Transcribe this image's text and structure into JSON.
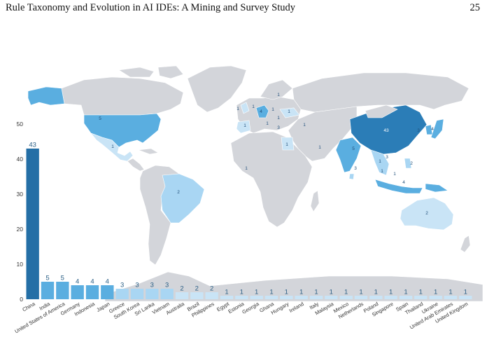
{
  "header": {
    "title": "Rule Taxonomy and Evolution in AI IDEs: A Mining and Survey Study",
    "page_number": "25"
  },
  "colors": {
    "land": "#d3d5da",
    "border": "#ffffff",
    "scale": [
      "#c9e4f6",
      "#a9d6f3",
      "#5aaee0",
      "#2b7db7",
      "#246fa6"
    ]
  },
  "map_data": {
    "type": "choropleth",
    "regions": [
      {
        "name": "Canada",
        "value": null
      },
      {
        "name": "United States of America",
        "value": 5
      },
      {
        "name": "Mexico",
        "value": 1
      },
      {
        "name": "Greenland",
        "value": null
      },
      {
        "name": "Brazil",
        "value": 2
      },
      {
        "name": "China",
        "value": 43
      },
      {
        "name": "India",
        "value": 5
      },
      {
        "name": "Australia",
        "value": 2
      },
      {
        "name": "Egypt",
        "value": 1
      },
      {
        "name": "Germany",
        "value": 4
      },
      {
        "name": "Indonesia",
        "value": 4
      },
      {
        "name": "Japan",
        "value": 4
      },
      {
        "name": "Russia",
        "value": null
      }
    ],
    "labels": [
      {
        "text": "5",
        "region": "United States of America"
      },
      {
        "text": "1",
        "region": "Mexico"
      },
      {
        "text": "2",
        "region": "Brazil"
      },
      {
        "text": "43",
        "region": "China"
      },
      {
        "text": "5",
        "region": "India"
      },
      {
        "text": "2",
        "region": "Australia"
      },
      {
        "text": "1",
        "region": "Egypt"
      },
      {
        "text": "4",
        "region": "Germany"
      },
      {
        "text": "4",
        "region": "Indonesia"
      },
      {
        "text": "1",
        "region": "Ukraine"
      },
      {
        "text": "1",
        "region": "Estonia"
      },
      {
        "text": "1",
        "region": "Netherlands"
      },
      {
        "text": "1",
        "region": "United Kingdom"
      },
      {
        "text": "1",
        "region": "Poland"
      },
      {
        "text": "1",
        "region": "Hungary"
      },
      {
        "text": "1",
        "region": "Spain"
      },
      {
        "text": "1",
        "region": "Italy"
      },
      {
        "text": "3",
        "region": "Greece"
      },
      {
        "text": "1",
        "region": "Georgia"
      },
      {
        "text": "1",
        "region": "United Arab Emirates"
      },
      {
        "text": "1",
        "region": "Ghana"
      },
      {
        "text": "3",
        "region": "Sri Lanka"
      },
      {
        "text": "3",
        "region": "Vietnam"
      },
      {
        "text": "1",
        "region": "Thailand"
      },
      {
        "text": "3",
        "region": "South Korea"
      },
      {
        "text": "4",
        "region": "Japan"
      },
      {
        "text": "1",
        "region": "Malaysia"
      },
      {
        "text": "1",
        "region": "Singapore"
      },
      {
        "text": "2",
        "region": "Philippines"
      }
    ]
  },
  "chart_data": {
    "type": "bar",
    "title": "",
    "xlabel": "",
    "ylabel": "",
    "ylim": [
      0,
      50
    ],
    "yticks": [
      0,
      10,
      20,
      30,
      40,
      50
    ],
    "grid": false,
    "legend": "none",
    "categories": [
      "China",
      "India",
      "United States of America",
      "Germany",
      "Indonesia",
      "Japan",
      "Greece",
      "South Korea",
      "Sri Lanka",
      "Vietnam",
      "Australia",
      "Brazil",
      "Philippines",
      "Egypt",
      "Estonia",
      "Georgia",
      "Ghana",
      "Hungary",
      "Ireland",
      "Italy",
      "Malaysia",
      "Mexico",
      "Netherlands",
      "Poland",
      "Singapore",
      "Spain",
      "Thailand",
      "Ukraine",
      "United Arab Emirates",
      "United Kingdom"
    ],
    "values": [
      43,
      5,
      5,
      4,
      4,
      4,
      3,
      3,
      3,
      3,
      2,
      2,
      2,
      1,
      1,
      1,
      1,
      1,
      1,
      1,
      1,
      1,
      1,
      1,
      1,
      1,
      1,
      1,
      1,
      1
    ]
  }
}
